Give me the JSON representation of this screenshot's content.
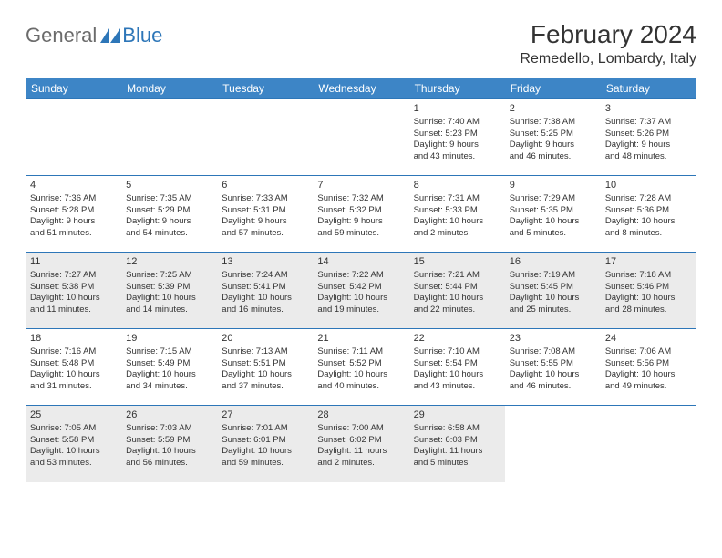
{
  "logo": {
    "general": "General",
    "blue": "Blue"
  },
  "title": "February 2024",
  "location": "Remedello, Lombardy, Italy",
  "colors": {
    "header_bg": "#3d85c6",
    "header_text": "#ffffff",
    "row_border": "#2d76b8",
    "shaded_bg": "#ebebeb",
    "logo_gray": "#6b6b6b",
    "logo_blue": "#2d76b8",
    "text": "#333333",
    "page_bg": "#ffffff"
  },
  "typography": {
    "title_fontsize": 28,
    "location_fontsize": 16,
    "dayheader_fontsize": 12,
    "daynum_fontsize": 11,
    "body_fontsize": 9.5
  },
  "day_headers": [
    "Sunday",
    "Monday",
    "Tuesday",
    "Wednesday",
    "Thursday",
    "Friday",
    "Saturday"
  ],
  "weeks": [
    [
      {
        "empty": true
      },
      {
        "empty": true
      },
      {
        "empty": true
      },
      {
        "empty": true
      },
      {
        "n": "1",
        "sr": "Sunrise: 7:40 AM",
        "ss": "Sunset: 5:23 PM",
        "d1": "Daylight: 9 hours",
        "d2": "and 43 minutes."
      },
      {
        "n": "2",
        "sr": "Sunrise: 7:38 AM",
        "ss": "Sunset: 5:25 PM",
        "d1": "Daylight: 9 hours",
        "d2": "and 46 minutes."
      },
      {
        "n": "3",
        "sr": "Sunrise: 7:37 AM",
        "ss": "Sunset: 5:26 PM",
        "d1": "Daylight: 9 hours",
        "d2": "and 48 minutes."
      }
    ],
    [
      {
        "n": "4",
        "sr": "Sunrise: 7:36 AM",
        "ss": "Sunset: 5:28 PM",
        "d1": "Daylight: 9 hours",
        "d2": "and 51 minutes."
      },
      {
        "n": "5",
        "sr": "Sunrise: 7:35 AM",
        "ss": "Sunset: 5:29 PM",
        "d1": "Daylight: 9 hours",
        "d2": "and 54 minutes."
      },
      {
        "n": "6",
        "sr": "Sunrise: 7:33 AM",
        "ss": "Sunset: 5:31 PM",
        "d1": "Daylight: 9 hours",
        "d2": "and 57 minutes."
      },
      {
        "n": "7",
        "sr": "Sunrise: 7:32 AM",
        "ss": "Sunset: 5:32 PM",
        "d1": "Daylight: 9 hours",
        "d2": "and 59 minutes."
      },
      {
        "n": "8",
        "sr": "Sunrise: 7:31 AM",
        "ss": "Sunset: 5:33 PM",
        "d1": "Daylight: 10 hours",
        "d2": "and 2 minutes."
      },
      {
        "n": "9",
        "sr": "Sunrise: 7:29 AM",
        "ss": "Sunset: 5:35 PM",
        "d1": "Daylight: 10 hours",
        "d2": "and 5 minutes."
      },
      {
        "n": "10",
        "sr": "Sunrise: 7:28 AM",
        "ss": "Sunset: 5:36 PM",
        "d1": "Daylight: 10 hours",
        "d2": "and 8 minutes."
      }
    ],
    [
      {
        "n": "11",
        "sr": "Sunrise: 7:27 AM",
        "ss": "Sunset: 5:38 PM",
        "d1": "Daylight: 10 hours",
        "d2": "and 11 minutes.",
        "shaded": true
      },
      {
        "n": "12",
        "sr": "Sunrise: 7:25 AM",
        "ss": "Sunset: 5:39 PM",
        "d1": "Daylight: 10 hours",
        "d2": "and 14 minutes.",
        "shaded": true
      },
      {
        "n": "13",
        "sr": "Sunrise: 7:24 AM",
        "ss": "Sunset: 5:41 PM",
        "d1": "Daylight: 10 hours",
        "d2": "and 16 minutes.",
        "shaded": true
      },
      {
        "n": "14",
        "sr": "Sunrise: 7:22 AM",
        "ss": "Sunset: 5:42 PM",
        "d1": "Daylight: 10 hours",
        "d2": "and 19 minutes.",
        "shaded": true
      },
      {
        "n": "15",
        "sr": "Sunrise: 7:21 AM",
        "ss": "Sunset: 5:44 PM",
        "d1": "Daylight: 10 hours",
        "d2": "and 22 minutes.",
        "shaded": true
      },
      {
        "n": "16",
        "sr": "Sunrise: 7:19 AM",
        "ss": "Sunset: 5:45 PM",
        "d1": "Daylight: 10 hours",
        "d2": "and 25 minutes.",
        "shaded": true
      },
      {
        "n": "17",
        "sr": "Sunrise: 7:18 AM",
        "ss": "Sunset: 5:46 PM",
        "d1": "Daylight: 10 hours",
        "d2": "and 28 minutes.",
        "shaded": true
      }
    ],
    [
      {
        "n": "18",
        "sr": "Sunrise: 7:16 AM",
        "ss": "Sunset: 5:48 PM",
        "d1": "Daylight: 10 hours",
        "d2": "and 31 minutes."
      },
      {
        "n": "19",
        "sr": "Sunrise: 7:15 AM",
        "ss": "Sunset: 5:49 PM",
        "d1": "Daylight: 10 hours",
        "d2": "and 34 minutes."
      },
      {
        "n": "20",
        "sr": "Sunrise: 7:13 AM",
        "ss": "Sunset: 5:51 PM",
        "d1": "Daylight: 10 hours",
        "d2": "and 37 minutes."
      },
      {
        "n": "21",
        "sr": "Sunrise: 7:11 AM",
        "ss": "Sunset: 5:52 PM",
        "d1": "Daylight: 10 hours",
        "d2": "and 40 minutes."
      },
      {
        "n": "22",
        "sr": "Sunrise: 7:10 AM",
        "ss": "Sunset: 5:54 PM",
        "d1": "Daylight: 10 hours",
        "d2": "and 43 minutes."
      },
      {
        "n": "23",
        "sr": "Sunrise: 7:08 AM",
        "ss": "Sunset: 5:55 PM",
        "d1": "Daylight: 10 hours",
        "d2": "and 46 minutes."
      },
      {
        "n": "24",
        "sr": "Sunrise: 7:06 AM",
        "ss": "Sunset: 5:56 PM",
        "d1": "Daylight: 10 hours",
        "d2": "and 49 minutes."
      }
    ],
    [
      {
        "n": "25",
        "sr": "Sunrise: 7:05 AM",
        "ss": "Sunset: 5:58 PM",
        "d1": "Daylight: 10 hours",
        "d2": "and 53 minutes.",
        "shaded": true
      },
      {
        "n": "26",
        "sr": "Sunrise: 7:03 AM",
        "ss": "Sunset: 5:59 PM",
        "d1": "Daylight: 10 hours",
        "d2": "and 56 minutes.",
        "shaded": true
      },
      {
        "n": "27",
        "sr": "Sunrise: 7:01 AM",
        "ss": "Sunset: 6:01 PM",
        "d1": "Daylight: 10 hours",
        "d2": "and 59 minutes.",
        "shaded": true
      },
      {
        "n": "28",
        "sr": "Sunrise: 7:00 AM",
        "ss": "Sunset: 6:02 PM",
        "d1": "Daylight: 11 hours",
        "d2": "and 2 minutes.",
        "shaded": true
      },
      {
        "n": "29",
        "sr": "Sunrise: 6:58 AM",
        "ss": "Sunset: 6:03 PM",
        "d1": "Daylight: 11 hours",
        "d2": "and 5 minutes.",
        "shaded": true
      },
      {
        "empty": true
      },
      {
        "empty": true
      }
    ]
  ]
}
